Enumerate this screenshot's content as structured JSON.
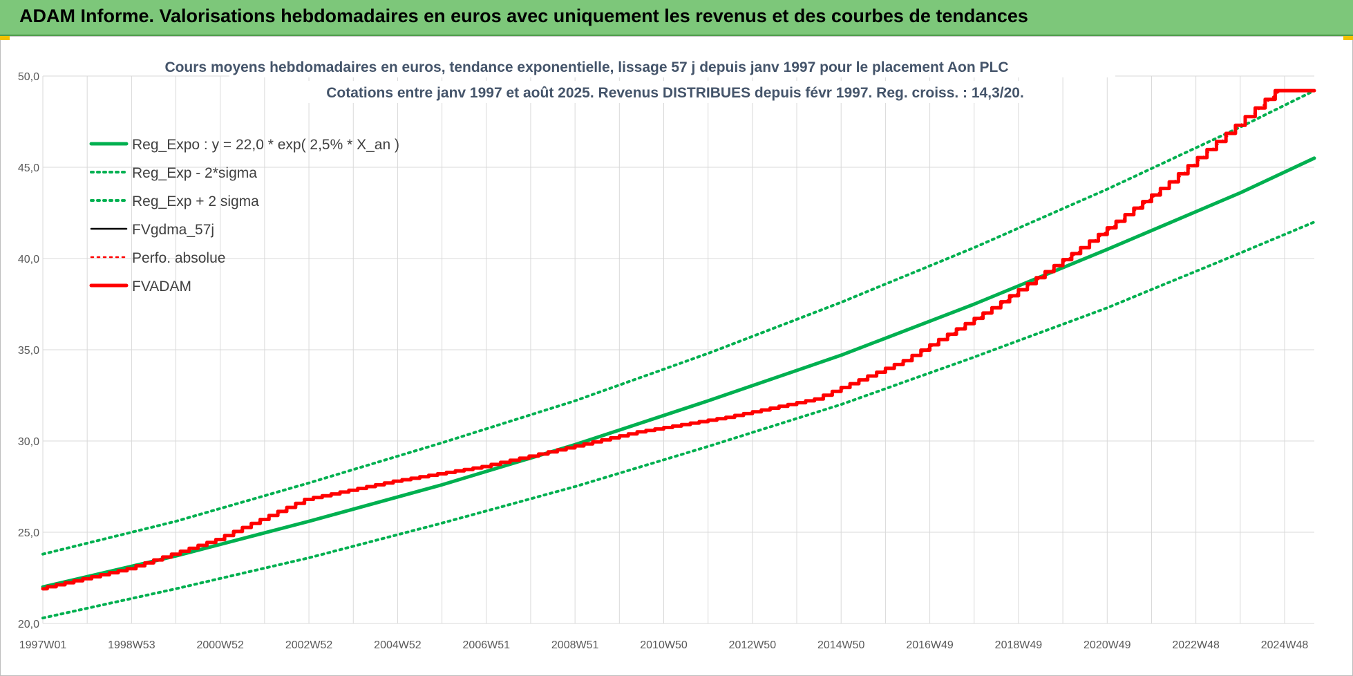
{
  "banner": {
    "title": "ADAM Informe. Valorisations hebdomadaires en euros avec uniquement les revenus et des courbes de tendances"
  },
  "colors": {
    "green": "#00b050",
    "red": "#ff0000",
    "black": "#000000",
    "banner": "#7dc77a"
  },
  "chart_data": {
    "type": "line",
    "title": "Cours moyens hebdomadaires en euros, tendance exponentielle, lissage 57 j depuis janv 1997 pour le placement Aon PLC",
    "subtitle": "Cotations entre janv 1997 et août 2025.  Revenus DISTRIBUES depuis févr 1997.  Reg. croiss. : 14,3/20.",
    "xlabel": "",
    "ylabel": "",
    "ylim": [
      20,
      50
    ],
    "yticks": [
      "20,0",
      "25,0",
      "30,0",
      "35,0",
      "40,0",
      "45,0",
      "50,0"
    ],
    "xlim": [
      1997.0,
      2025.67
    ],
    "xticks": [
      {
        "label": "1997W01",
        "x": 1997.0
      },
      {
        "label": "1998W53",
        "x": 1999.0
      },
      {
        "label": "2000W52",
        "x": 2001.0
      },
      {
        "label": "2002W52",
        "x": 2003.0
      },
      {
        "label": "2004W52",
        "x": 2005.0
      },
      {
        "label": "2006W51",
        "x": 2007.0
      },
      {
        "label": "2008W51",
        "x": 2009.0
      },
      {
        "label": "2010W50",
        "x": 2011.0
      },
      {
        "label": "2012W50",
        "x": 2013.0
      },
      {
        "label": "2014W50",
        "x": 2015.0
      },
      {
        "label": "2016W49",
        "x": 2017.0
      },
      {
        "label": "2018W49",
        "x": 2019.0
      },
      {
        "label": "2020W49",
        "x": 2021.0
      },
      {
        "label": "2022W48",
        "x": 2023.0
      },
      {
        "label": "2024W48",
        "x": 2025.0
      }
    ],
    "grid": true,
    "legend_position": "top-left",
    "series": [
      {
        "name": "Reg_Expo : y = 22,0 * exp( 2,5% *  X_an )",
        "color": "#00b050",
        "style": "solid",
        "x": [
          1997.0,
          2000.0,
          2003.0,
          2006.0,
          2009.0,
          2012.0,
          2015.0,
          2018.0,
          2021.0,
          2024.0,
          2025.67
        ],
        "y": [
          22.0,
          23.7,
          25.6,
          27.6,
          29.8,
          32.2,
          34.7,
          37.5,
          40.5,
          43.6,
          45.5
        ]
      },
      {
        "name": "Reg_Exp - 2*sigma",
        "color": "#00b050",
        "style": "dotted",
        "x": [
          1997.0,
          2000.0,
          2003.0,
          2006.0,
          2009.0,
          2012.0,
          2015.0,
          2018.0,
          2021.0,
          2024.0,
          2025.67
        ],
        "y": [
          20.3,
          21.9,
          23.6,
          25.5,
          27.5,
          29.7,
          32.0,
          34.6,
          37.3,
          40.3,
          42.0
        ]
      },
      {
        "name": "Reg_Exp + 2 sigma",
        "color": "#00b050",
        "style": "dotted",
        "x": [
          1997.0,
          2000.0,
          2003.0,
          2006.0,
          2009.0,
          2012.0,
          2015.0,
          2018.0,
          2021.0,
          2024.0,
          2025.67
        ],
        "y": [
          23.8,
          25.6,
          27.7,
          29.9,
          32.2,
          34.8,
          37.6,
          40.6,
          43.8,
          47.2,
          49.2
        ]
      },
      {
        "name": "FVgdma_57j",
        "color": "#000000",
        "style": "solid",
        "x": [
          1997.0,
          1999.0,
          2001.0,
          2003.0,
          2005.0,
          2007.0,
          2008.5,
          2010.5,
          2012.5,
          2014.5,
          2016.5,
          2018.5,
          2020.5,
          2022.5,
          2024.0,
          2024.9,
          2025.67
        ],
        "y": [
          21.9,
          23.0,
          24.6,
          26.8,
          27.8,
          28.6,
          29.4,
          30.5,
          31.3,
          32.3,
          34.4,
          37.3,
          40.6,
          44.2,
          47.3,
          49.2,
          49.2
        ]
      },
      {
        "name": "Perfo. absolue",
        "color": "#ff0000",
        "style": "dotted",
        "x": [
          1997.0,
          1999.0,
          2001.0,
          2003.0,
          2005.0,
          2007.0,
          2008.5,
          2010.5,
          2012.5,
          2014.5,
          2016.5,
          2018.5,
          2020.5,
          2022.5,
          2024.0,
          2024.9,
          2025.67
        ],
        "y": [
          21.9,
          23.0,
          24.6,
          26.8,
          27.8,
          28.6,
          29.4,
          30.5,
          31.3,
          32.3,
          34.4,
          37.3,
          40.6,
          44.2,
          47.3,
          49.2,
          49.2
        ]
      },
      {
        "name": "FVADAM",
        "color": "#ff0000",
        "style": "solid",
        "x": [
          1997.0,
          1999.0,
          2001.0,
          2003.0,
          2005.0,
          2007.0,
          2008.5,
          2010.5,
          2012.5,
          2014.5,
          2016.5,
          2018.5,
          2020.5,
          2022.5,
          2024.0,
          2024.9,
          2025.67
        ],
        "y": [
          21.9,
          23.0,
          24.6,
          26.8,
          27.8,
          28.6,
          29.4,
          30.5,
          31.3,
          32.3,
          34.4,
          37.3,
          40.6,
          44.2,
          47.3,
          49.2,
          49.2
        ]
      }
    ]
  }
}
